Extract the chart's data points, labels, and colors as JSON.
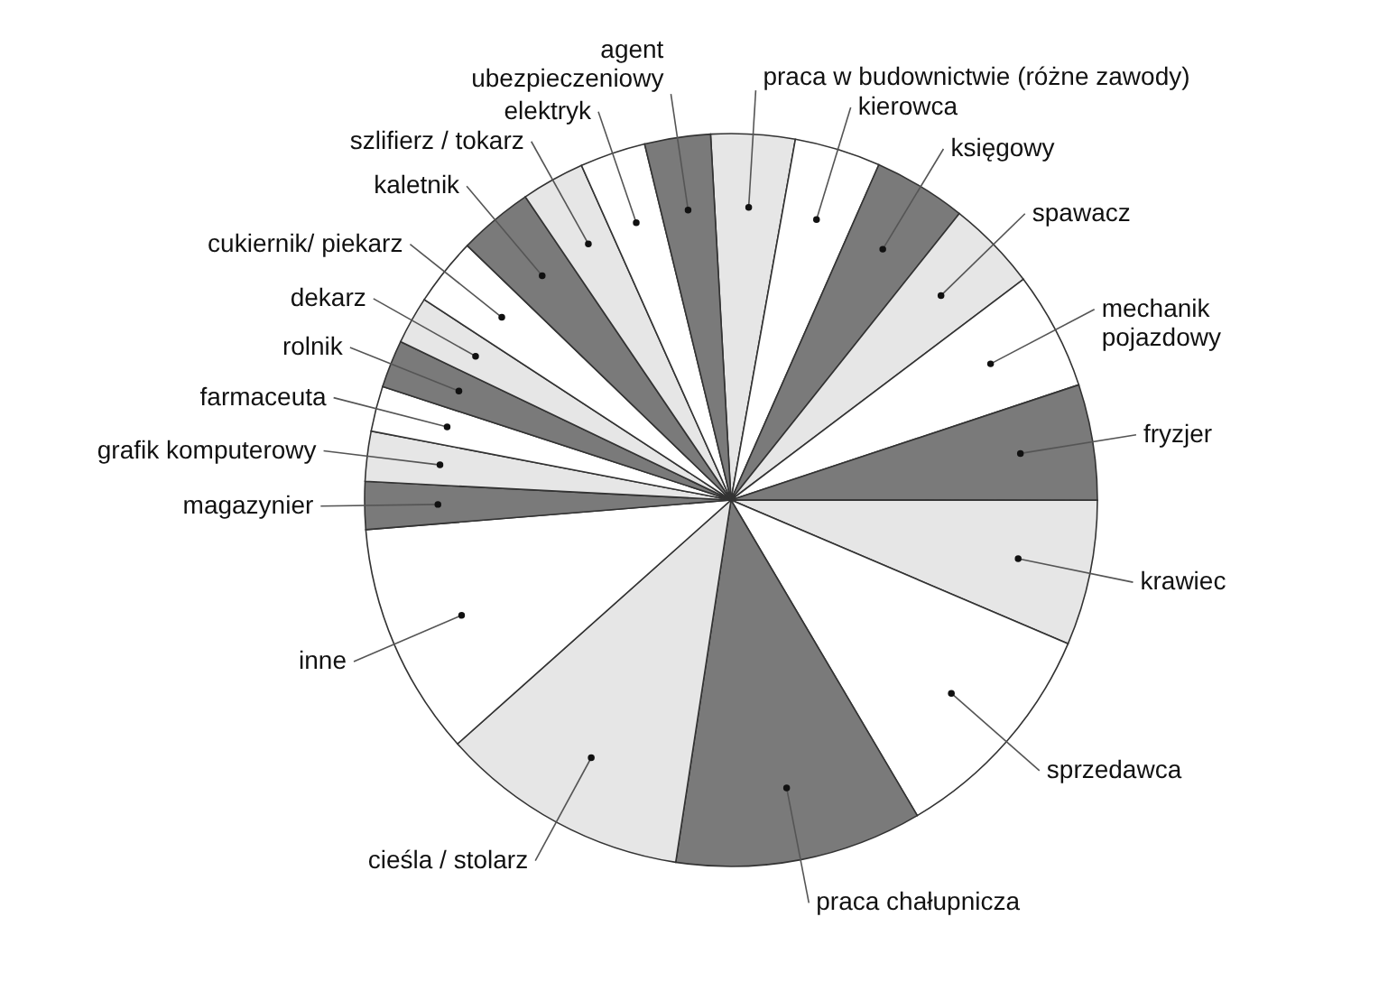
{
  "chart_data": {
    "type": "pie",
    "categories": [
      "praca w budownictwie (różne zawody)",
      "kierowca",
      "księgowy",
      "spawacz",
      "mechanik\npojazdowy",
      "fryzjer",
      "krawiec",
      "sprzedawca",
      "praca chałupnicza",
      "cieśla / stolarz",
      "inne",
      "magazynier",
      "grafik komputerowy",
      "farmaceuta",
      "rolnik",
      "dekarz",
      "cukiernik/ piekarz",
      "kaletnik",
      "szlifierz / tokarz",
      "elektryk",
      "agent\nubezpieczeniowy"
    ],
    "values": [
      3.7,
      3.8,
      4.1,
      4.0,
      5.2,
      5.1,
      6.4,
      10.1,
      10.9,
      11.0,
      10.3,
      2.1,
      2.2,
      2.0,
      2.1,
      2.1,
      3.0,
      3.3,
      2.8,
      2.9,
      2.9
    ],
    "colors": [
      "#e6e6e6",
      "#ffffff",
      "#7a7a7a",
      "#e6e6e6",
      "#ffffff",
      "#7a7a7a",
      "#e6e6e6",
      "#ffffff",
      "#7a7a7a",
      "#e6e6e6",
      "#ffffff",
      "#7a7a7a",
      "#e6e6e6",
      "#ffffff",
      "#7a7a7a",
      "#e6e6e6",
      "#ffffff",
      "#7a7a7a",
      "#e6e6e6",
      "#ffffff",
      "#7a7a7a"
    ]
  }
}
